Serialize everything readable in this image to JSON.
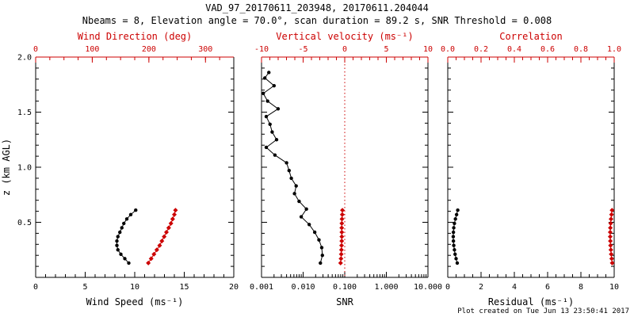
{
  "header": {
    "title": "VAD_97_20170611_203948, 20170611.204044",
    "subtitle": "Nbeams = 8, Elevation angle = 70.0°, scan duration = 89.2 s, SNR Threshold = 0.008"
  },
  "footer": {
    "created": "Plot created on Tue Jun 13 23:50:41 2017"
  },
  "colors": {
    "axis": "#000000",
    "secondary": "#cc0000",
    "background": "#ffffff"
  },
  "chart_data": {
    "type": "line",
    "title": "VAD_97_20170611_203948, 20170611.204044",
    "subtitle": "Nbeams = 8, Elevation angle = 70.0°, scan duration = 89.2 s, SNR Threshold = 0.008",
    "legend": "none",
    "grid": false,
    "y_axis": {
      "label": "z (km AGL)",
      "min": 0,
      "max": 2,
      "ticks": [
        0.5,
        1.0,
        1.5,
        2.0
      ],
      "tick_labels": [
        "0.5",
        "1.0",
        "1.5",
        "2.0"
      ],
      "minor_step": 0.1
    },
    "panels": [
      {
        "id": "wind",
        "x_bottom": {
          "label": "Wind Speed (ms⁻¹)",
          "scale": "linear",
          "min": 0,
          "max": 20,
          "ticks": [
            0,
            5,
            10,
            15,
            20
          ],
          "tick_labels": [
            "0",
            "5",
            "10",
            "15",
            "20"
          ],
          "minor_step": 1,
          "color": "#000000"
        },
        "x_top": {
          "label": "Wind Direction (deg)",
          "scale": "linear",
          "min": 0,
          "max": 350,
          "ticks": [
            0,
            100,
            200,
            300
          ],
          "tick_labels": [
            "0",
            "100",
            "200",
            "300"
          ],
          "minor_step": 25,
          "color": "#cc0000"
        },
        "series": [
          {
            "name": "wind-speed",
            "axis": "bottom",
            "color": "#000000",
            "marker": "circle",
            "z": [
              0.13,
              0.17,
              0.21,
              0.25,
              0.29,
              0.33,
              0.37,
              0.41,
              0.45,
              0.49,
              0.53,
              0.57,
              0.61
            ],
            "values": [
              9.4,
              9.0,
              8.6,
              8.3,
              8.2,
              8.2,
              8.3,
              8.5,
              8.7,
              8.9,
              9.2,
              9.6,
              10.1
            ]
          },
          {
            "name": "wind-direction",
            "axis": "top",
            "color": "#cc0000",
            "marker": "diamond",
            "z": [
              0.13,
              0.17,
              0.21,
              0.25,
              0.29,
              0.33,
              0.37,
              0.41,
              0.45,
              0.49,
              0.53,
              0.57,
              0.61
            ],
            "values": [
              199,
              204,
              209,
              214,
              219,
              223,
              227,
              231,
              235,
              239,
              242,
              245,
              247
            ]
          }
        ]
      },
      {
        "id": "snr",
        "x_bottom": {
          "label": "SNR",
          "scale": "log",
          "min": 0.001,
          "max": 10,
          "ticks": [
            0.001,
            0.01,
            0.1,
            1,
            10
          ],
          "tick_labels": [
            "0.001",
            "0.010",
            "0.100",
            "1.000",
            "10.000"
          ],
          "color": "#000000"
        },
        "x_top": {
          "label": "Vertical velocity (ms⁻¹)",
          "scale": "linear",
          "min": -10,
          "max": 10,
          "ticks": [
            -10,
            -5,
            0,
            5,
            10
          ],
          "tick_labels": [
            "-10",
            "-5",
            "0",
            "5",
            "10"
          ],
          "minor_step": 1,
          "color": "#cc0000"
        },
        "reference_line": {
          "axis": "top",
          "value": 0,
          "color": "#cc0000",
          "style": "dotted"
        },
        "series": [
          {
            "name": "snr",
            "axis": "bottom",
            "color": "#000000",
            "marker": "circle",
            "z": [
              0.13,
              0.2,
              0.27,
              0.34,
              0.41,
              0.48,
              0.55,
              0.62,
              0.69,
              0.76,
              0.83,
              0.9,
              0.97,
              1.04,
              1.11,
              1.18,
              1.25,
              1.32,
              1.39,
              1.46,
              1.53,
              1.6,
              1.67,
              1.74,
              1.81,
              1.86
            ],
            "values": [
              0.026,
              0.029,
              0.028,
              0.024,
              0.019,
              0.014,
              0.009,
              0.012,
              0.008,
              0.0062,
              0.0068,
              0.0052,
              0.0046,
              0.004,
              0.0021,
              0.0013,
              0.0023,
              0.0018,
              0.0016,
              0.0013,
              0.0025,
              0.0014,
              0.0011,
              0.002,
              0.0012,
              0.0015
            ]
          },
          {
            "name": "vertical-velocity",
            "axis": "top",
            "color": "#cc0000",
            "marker": "diamond",
            "z": [
              0.13,
              0.17,
              0.21,
              0.25,
              0.29,
              0.33,
              0.37,
              0.41,
              0.45,
              0.49,
              0.53,
              0.57,
              0.61
            ],
            "values": [
              -0.5,
              -0.45,
              -0.42,
              -0.4,
              -0.38,
              -0.36,
              -0.35,
              -0.35,
              -0.36,
              -0.35,
              -0.33,
              -0.3,
              -0.28
            ]
          }
        ]
      },
      {
        "id": "residual",
        "x_bottom": {
          "label": "Residual (ms⁻¹)",
          "scale": "linear",
          "min": 0,
          "max": 10,
          "ticks": [
            0,
            2,
            4,
            6,
            8,
            10
          ],
          "tick_labels": [
            "0",
            "2",
            "4",
            "6",
            "8",
            "10"
          ],
          "minor_step": 0.5,
          "color": "#000000"
        },
        "x_top": {
          "label": "Correlation",
          "scale": "linear",
          "min": 0,
          "max": 1,
          "ticks": [
            0,
            0.2,
            0.4,
            0.6,
            0.8,
            1.0
          ],
          "tick_labels": [
            "0.0",
            "0.2",
            "0.4",
            "0.6",
            "0.8",
            "1.0"
          ],
          "minor_step": 0.05,
          "color": "#cc0000"
        },
        "series": [
          {
            "name": "residual",
            "axis": "bottom",
            "color": "#000000",
            "marker": "circle",
            "z": [
              0.13,
              0.17,
              0.21,
              0.25,
              0.29,
              0.33,
              0.37,
              0.41,
              0.45,
              0.49,
              0.53,
              0.57,
              0.61
            ],
            "values": [
              0.57,
              0.5,
              0.44,
              0.4,
              0.36,
              0.34,
              0.33,
              0.34,
              0.36,
              0.4,
              0.46,
              0.53,
              0.6
            ]
          },
          {
            "name": "correlation",
            "axis": "top",
            "color": "#cc0000",
            "marker": "diamond",
            "z": [
              0.13,
              0.17,
              0.21,
              0.25,
              0.29,
              0.33,
              0.37,
              0.41,
              0.45,
              0.49,
              0.53,
              0.57,
              0.61
            ],
            "values": [
              0.988,
              0.985,
              0.982,
              0.98,
              0.978,
              0.977,
              0.976,
              0.976,
              0.977,
              0.979,
              0.981,
              0.984,
              0.987
            ]
          }
        ]
      }
    ]
  }
}
